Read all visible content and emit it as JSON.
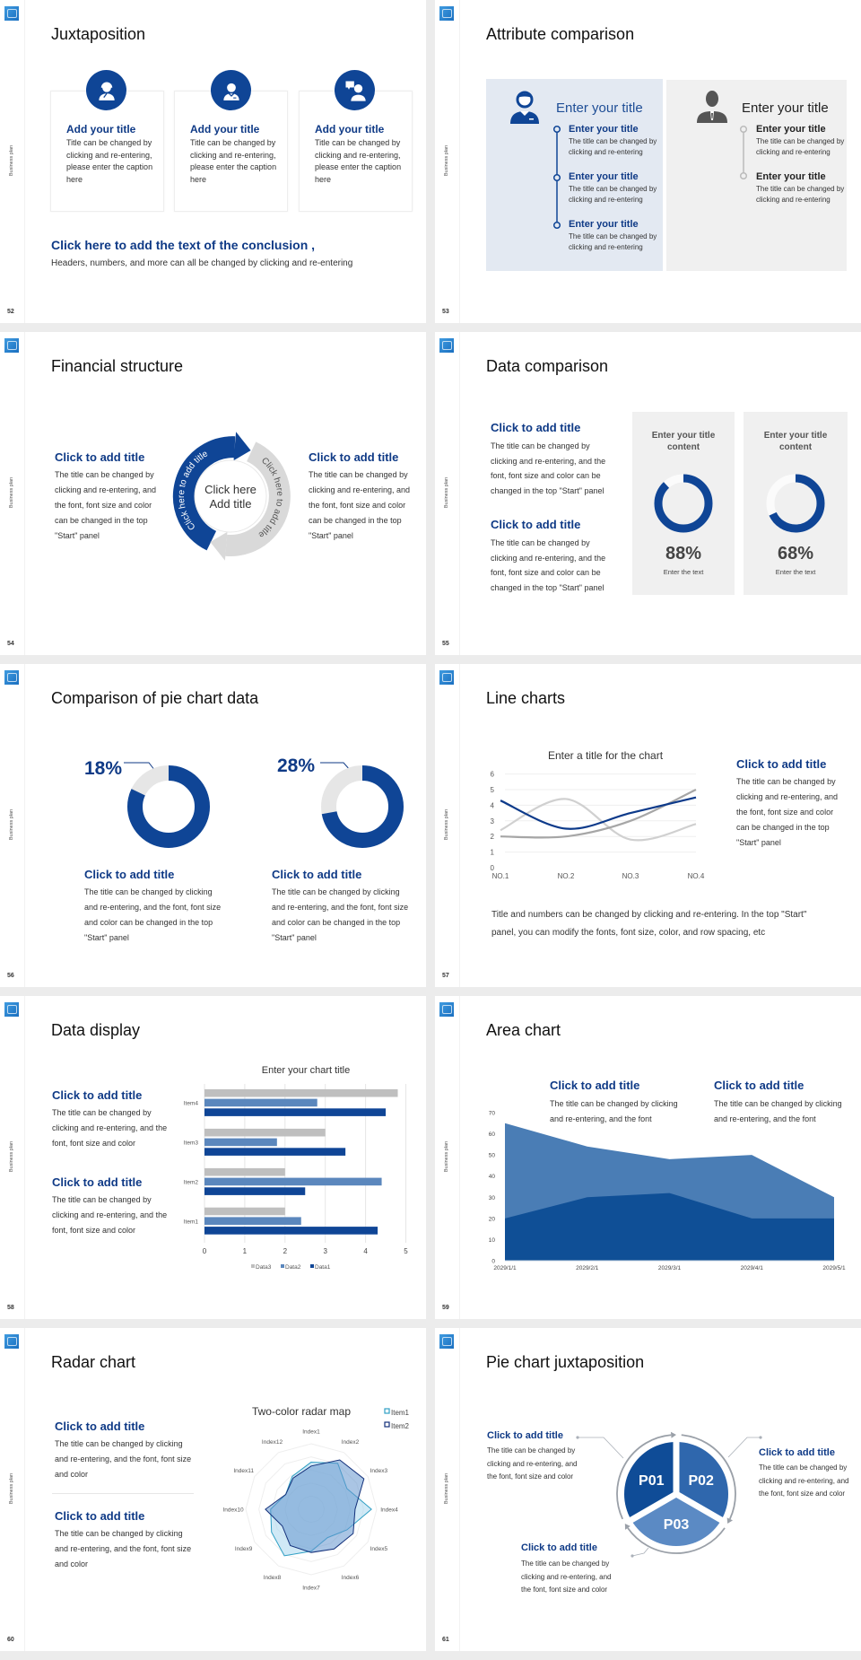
{
  "common": {
    "side_label": "Business plan"
  },
  "colors": {
    "brand_blue": "#0f4596",
    "title_blue": "#0f3a86",
    "mid_blue": "#5b87bd",
    "light_gray": "#bfbfbf",
    "panel_gray": "#f0f0f0",
    "panel_blue": "#e3e9f2"
  },
  "slides": {
    "s52": {
      "num": "52",
      "title": "Juxtaposition",
      "cards": [
        {
          "icon": "customer-service-icon",
          "title": "Add your title",
          "body": "Title can be changed by clicking and re-entering, please enter the caption here"
        },
        {
          "icon": "staff-icon",
          "title": "Add your title",
          "body": "Title can be changed by clicking and re-entering, please enter the caption here"
        },
        {
          "icon": "consultant-chat-icon",
          "title": "Add your title",
          "body": "Title can be changed by clicking and re-entering, please enter the caption here"
        }
      ],
      "conclusion_title": "Click here to add the text of the conclusion ,",
      "conclusion_body": "Headers, numbers, and more can all be changed by clicking and re-entering"
    },
    "s53": {
      "num": "53",
      "title": "Attribute comparison",
      "left": {
        "heading": "Enter your title",
        "items": [
          {
            "title": "Enter your title",
            "body": "The title can be changed by clicking and re-entering"
          },
          {
            "title": "Enter your title",
            "body": "The title can be changed by clicking and re-entering"
          },
          {
            "title": "Enter your title",
            "body": "The title can be changed by clicking and re-entering"
          }
        ]
      },
      "right": {
        "heading": "Enter your title",
        "items": [
          {
            "title": "Enter your title",
            "body": "The title can be changed by clicking and re-entering"
          },
          {
            "title": "Enter your title",
            "body": "The title can be changed by clicking and re-entering"
          }
        ]
      }
    },
    "s54": {
      "num": "54",
      "title": "Financial structure",
      "left": {
        "title": "Click to add title",
        "body": "The title can be changed by clicking and re-entering, and the font, font size and color can be changed in the top \"Start\" panel"
      },
      "right": {
        "title": "Click to add title",
        "body": "The title can be changed by clicking and re-entering, and the font, font size and color can be changed in the top \"Start\" panel"
      },
      "center_line1": "Click here",
      "center_line2": "Add title",
      "arc_left": "Click here to add title",
      "arc_right": "Click here to add title"
    },
    "s55": {
      "num": "55",
      "title": "Data comparison",
      "blocks": [
        {
          "title": "Click to add title",
          "body": "The title can be changed by clicking and re-entering, and the font, font size and color can be changed in the top \"Start\" panel"
        },
        {
          "title": "Click to add title",
          "body": "The title can be changed by clicking and re-entering, and the font, font size and color can be changed in the top \"Start\" panel"
        }
      ],
      "panels": [
        {
          "title": "Enter your title content",
          "value": 88,
          "label": "88%",
          "caption": "Enter the text"
        },
        {
          "title": "Enter your title content",
          "value": 68,
          "label": "68%",
          "caption": "Enter the text"
        }
      ]
    },
    "s56": {
      "num": "56",
      "title": "Comparison of pie chart data",
      "pies": [
        {
          "value": 18,
          "label": "18%",
          "title": "Click to add title",
          "body": "The title can be changed by clicking and re-entering, and the font, font size and color can be changed in the top \"Start\" panel"
        },
        {
          "value": 28,
          "label": "28%",
          "title": "Click to add title",
          "body": "The title can be changed by clicking and re-entering, and the font, font size and color can be changed in the top \"Start\" panel"
        }
      ]
    },
    "s57": {
      "num": "57",
      "title": "Line charts",
      "side": {
        "title": "Click to add title",
        "body": "The title can be changed by clicking and re-entering, and the font, font size and color can be changed in the top \"Start\" panel"
      },
      "note": "Title and numbers can be changed by clicking and re-entering. In the top \"Start\" panel, you can modify the fonts, font size, color, and row spacing, etc"
    },
    "s58": {
      "num": "58",
      "title": "Data display",
      "blocks": [
        {
          "title": "Click to add title",
          "body": "The title can be changed by clicking and re-entering, and the font, font size and color"
        },
        {
          "title": "Click to add title",
          "body": "The title can be changed by clicking and re-entering, and the font, font size and color"
        }
      ]
    },
    "s59": {
      "num": "59",
      "title": "Area chart",
      "blocks": [
        {
          "title": "Click to add title",
          "body": "The title can be changed by clicking and re-entering, and the font"
        },
        {
          "title": "Click to add title",
          "body": "The title can be changed by clicking and re-entering, and the font"
        }
      ]
    },
    "s60": {
      "num": "60",
      "title": "Radar chart",
      "blocks": [
        {
          "title": "Click to add title",
          "body": "The title can be changed by clicking and re-entering, and the font, font size and color"
        },
        {
          "title": "Click to add title",
          "body": "The title can be changed by clicking and re-entering, and the font, font size and color"
        }
      ]
    },
    "s61": {
      "num": "61",
      "title": "Pie chart juxtaposition",
      "sectors": [
        "P01",
        "P02",
        "P03"
      ],
      "blocks": [
        {
          "title": "Click to add title",
          "body": "The title can be changed by clicking and re-entering, and the font, font size and color"
        },
        {
          "title": "Click to add title",
          "body": "The title can be changed by clicking and re-entering, and the font, font size and color"
        },
        {
          "title": "Click to add title",
          "body": "The title can be changed by clicking and re-entering, and the font, font size and color"
        }
      ]
    }
  },
  "chart_data": [
    {
      "type": "line",
      "title": "Enter a title for the chart",
      "categories": [
        "NO.1",
        "NO.2",
        "NO.3",
        "NO.4"
      ],
      "ylim": [
        0,
        6
      ],
      "yticks": [
        "0",
        "1",
        "2",
        "3",
        "4",
        "5",
        "6"
      ],
      "grid": true,
      "smooth": true,
      "series": [
        {
          "values": [
            2.4,
            4.4,
            1.8,
            2.8
          ],
          "color": "#d0d0d0"
        },
        {
          "values": [
            2.0,
            2.0,
            3.0,
            5.0
          ],
          "color": "#a6a6a6"
        },
        {
          "values": [
            4.3,
            2.5,
            3.5,
            4.5
          ],
          "color": "#0d3a8a"
        }
      ]
    },
    {
      "type": "bar",
      "orientation": "horizontal",
      "title": "Enter your chart title",
      "categories": [
        "Item1",
        "Item2",
        "Item3",
        "Item4"
      ],
      "xlim": [
        0,
        5
      ],
      "xticks": [
        "0",
        "1",
        "2",
        "3",
        "4",
        "5"
      ],
      "grid": true,
      "legend": "bottom",
      "series": [
        {
          "name": "Data3",
          "values": [
            2,
            2,
            3,
            4.8
          ],
          "color": "#bfbfbf"
        },
        {
          "name": "Data2",
          "values": [
            2.4,
            4.4,
            1.8,
            2.8
          ],
          "color": "#5b87bd"
        },
        {
          "name": "Data1",
          "values": [
            4.3,
            2.5,
            3.5,
            4.5
          ],
          "color": "#0f4596"
        }
      ]
    },
    {
      "type": "area",
      "categories": [
        "2029/1/1",
        "2029/2/1",
        "2029/3/1",
        "2029/4/1",
        "2029/5/1"
      ],
      "ylim": [
        0,
        70
      ],
      "yticks": [
        "0",
        "10",
        "20",
        "30",
        "40",
        "50",
        "60",
        "70"
      ],
      "grid": false,
      "series": [
        {
          "values": [
            65,
            54,
            48,
            50,
            30
          ],
          "color": "#4a7db5"
        },
        {
          "values": [
            20,
            30,
            32,
            20,
            20
          ],
          "color": "#0f4f96"
        }
      ]
    },
    {
      "type": "radar",
      "title": "Two-color radar map",
      "categories": [
        "Index1",
        "Index2",
        "Index3",
        "Index4",
        "Index5",
        "Index6",
        "Index7",
        "Index8",
        "Index9",
        "Index10",
        "Index11",
        "Index12"
      ],
      "rlim": [
        0,
        5
      ],
      "legend": "top-right",
      "series": [
        {
          "name": "Item1",
          "values": [
            3.6,
            4.05,
            3.15,
            4.6,
            3.15,
            2.5,
            3.2,
            4.1,
            3.5,
            3.1,
            2.25,
            2.9
          ],
          "color": "#2f9fc4"
        },
        {
          "name": "Item2",
          "values": [
            3.3,
            4.35,
            4.65,
            3.35,
            3.7,
            3.5,
            3.3,
            3.2,
            2.55,
            3.5,
            2.25,
            2.75
          ],
          "color": "#13307a"
        }
      ]
    }
  ]
}
